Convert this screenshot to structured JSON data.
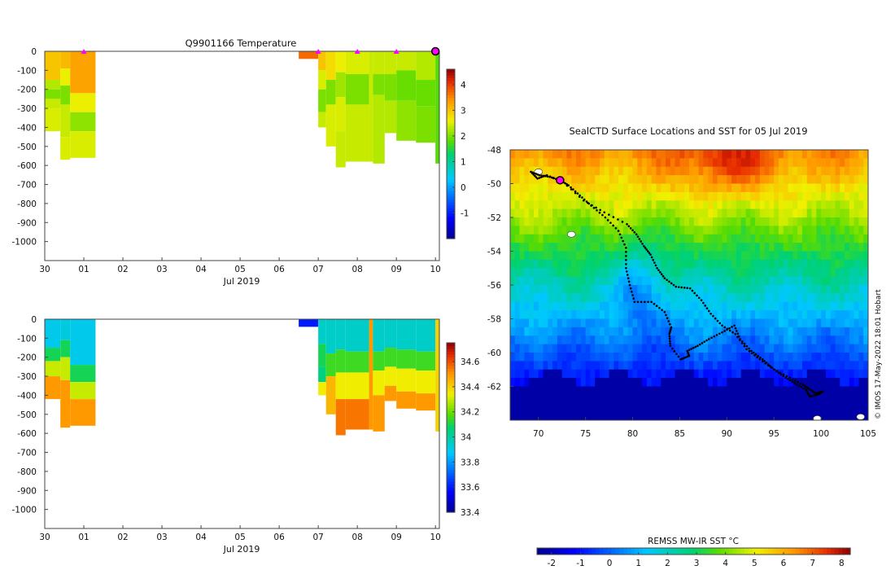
{
  "chart_data": [
    {
      "type": "heatmap",
      "title": "Q9901166  Temperature",
      "variable": "temperature",
      "xlabel": "Jul 2019",
      "x_tick_labels": [
        "30",
        "01",
        "02",
        "03",
        "04",
        "05",
        "06",
        "07",
        "08",
        "09",
        "10"
      ],
      "y_tick_labels": [
        "0",
        "-100",
        "-200",
        "-300",
        "-400",
        "-500",
        "-600",
        "-700",
        "-800",
        "-900",
        "-1000"
      ],
      "ylim": [
        -1100,
        0
      ],
      "xlim": [
        0,
        10.1
      ],
      "colorbar": {
        "min": -2,
        "max": 4.6,
        "ticks": [
          "-1",
          "0",
          "1",
          "2",
          "3",
          "4"
        ],
        "tick_values": [
          -1,
          0,
          1,
          2,
          3,
          4
        ]
      },
      "markers_x_days": [
        1,
        7,
        8,
        9
      ],
      "last_position_x_day": 10,
      "profiles": [
        {
          "x0": 0.0,
          "x1": 0.4,
          "maxdepth": 420,
          "bands": [
            [
              0,
              150,
              3.0
            ],
            [
              150,
              200,
              2.3
            ],
            [
              200,
              250,
              2.0
            ],
            [
              250,
              300,
              2.4
            ],
            [
              300,
              420,
              2.5
            ]
          ]
        },
        {
          "x0": 0.4,
          "x1": 0.65,
          "maxdepth": 570,
          "bands": [
            [
              0,
              90,
              3.1
            ],
            [
              90,
              180,
              2.6
            ],
            [
              180,
              280,
              2.0
            ],
            [
              280,
              450,
              2.4
            ],
            [
              450,
              570,
              2.5
            ]
          ]
        },
        {
          "x0": 0.65,
          "x1": 1.3,
          "maxdepth": 560,
          "bands": [
            [
              0,
              220,
              3.3
            ],
            [
              220,
              320,
              2.6
            ],
            [
              320,
              420,
              2.1
            ],
            [
              420,
              560,
              2.5
            ]
          ]
        },
        {
          "x0": 6.5,
          "x1": 7.0,
          "maxdepth": 40,
          "bands": [
            [
              0,
              40,
              3.7
            ]
          ]
        },
        {
          "x0": 7.0,
          "x1": 7.2,
          "maxdepth": 400,
          "bands": [
            [
              0,
              100,
              3.0
            ],
            [
              100,
              200,
              2.5
            ],
            [
              200,
              320,
              2.0
            ],
            [
              320,
              400,
              2.4
            ]
          ]
        },
        {
          "x0": 7.2,
          "x1": 7.45,
          "maxdepth": 500,
          "bands": [
            [
              0,
              150,
              2.8
            ],
            [
              150,
              280,
              2.0
            ],
            [
              280,
              500,
              2.5
            ]
          ]
        },
        {
          "x0": 7.45,
          "x1": 7.7,
          "maxdepth": 610,
          "bands": [
            [
              0,
              110,
              2.6
            ],
            [
              110,
              240,
              2.2
            ],
            [
              240,
              420,
              2.5
            ],
            [
              420,
              610,
              2.4
            ]
          ]
        },
        {
          "x0": 7.7,
          "x1": 8.3,
          "maxdepth": 580,
          "bands": [
            [
              0,
              120,
              2.5
            ],
            [
              120,
              280,
              2.0
            ],
            [
              280,
              580,
              2.4
            ]
          ]
        },
        {
          "x0": 8.3,
          "x1": 8.4,
          "maxdepth": 580,
          "bands": [
            [
              0,
              580,
              2.4
            ]
          ]
        },
        {
          "x0": 8.4,
          "x1": 8.7,
          "maxdepth": 590,
          "bands": [
            [
              0,
              120,
              2.4
            ],
            [
              120,
              230,
              2.0
            ],
            [
              230,
              590,
              2.3
            ]
          ]
        },
        {
          "x0": 8.7,
          "x1": 9.0,
          "maxdepth": 430,
          "bands": [
            [
              0,
              120,
              2.4
            ],
            [
              120,
              260,
              2.0
            ],
            [
              260,
              430,
              2.3
            ]
          ]
        },
        {
          "x0": 9.0,
          "x1": 9.5,
          "maxdepth": 470,
          "bands": [
            [
              0,
              100,
              2.4
            ],
            [
              100,
              260,
              1.9
            ],
            [
              260,
              470,
              2.1
            ]
          ]
        },
        {
          "x0": 9.5,
          "x1": 10.0,
          "maxdepth": 480,
          "bands": [
            [
              0,
              150,
              2.3
            ],
            [
              150,
              290,
              1.9
            ],
            [
              290,
              480,
              2.0
            ]
          ]
        },
        {
          "x0": 10.0,
          "x1": 10.1,
          "maxdepth": 590,
          "bands": [
            [
              0,
              590,
              1.8
            ]
          ]
        }
      ]
    },
    {
      "type": "heatmap",
      "title": "",
      "variable": "salinity",
      "xlabel": "Jul 2019",
      "x_tick_labels": [
        "30",
        "01",
        "02",
        "03",
        "04",
        "05",
        "06",
        "07",
        "08",
        "09",
        "10"
      ],
      "y_tick_labels": [
        "0",
        "-100",
        "-200",
        "-300",
        "-400",
        "-500",
        "-600",
        "-700",
        "-800",
        "-900",
        "-1000"
      ],
      "ylim": [
        -1100,
        0
      ],
      "xlim": [
        0,
        10.1
      ],
      "colorbar": {
        "min": 33.4,
        "max": 34.75,
        "ticks": [
          "33.4",
          "33.6",
          "33.8",
          "34",
          "34.2",
          "34.4",
          "34.6"
        ],
        "tick_values": [
          33.4,
          33.6,
          33.8,
          34.0,
          34.2,
          34.4,
          34.6
        ]
      },
      "profiles": [
        {
          "x0": 0.0,
          "x1": 0.4,
          "maxdepth": 420,
          "bands": [
            [
              0,
              150,
              33.9
            ],
            [
              150,
              220,
              34.1
            ],
            [
              220,
              300,
              34.3
            ],
            [
              300,
              420,
              34.5
            ]
          ]
        },
        {
          "x0": 0.4,
          "x1": 0.65,
          "maxdepth": 570,
          "bands": [
            [
              0,
              110,
              33.92
            ],
            [
              110,
              200,
              34.1
            ],
            [
              200,
              320,
              34.3
            ],
            [
              320,
              570,
              34.5
            ]
          ]
        },
        {
          "x0": 0.65,
          "x1": 1.3,
          "maxdepth": 560,
          "bands": [
            [
              0,
              240,
              33.9
            ],
            [
              240,
              330,
              34.1
            ],
            [
              330,
              420,
              34.3
            ],
            [
              420,
              560,
              34.5
            ]
          ]
        },
        {
          "x0": 6.5,
          "x1": 7.0,
          "maxdepth": 40,
          "bands": [
            [
              0,
              40,
              33.6
            ]
          ]
        },
        {
          "x0": 7.0,
          "x1": 7.2,
          "maxdepth": 400,
          "bands": [
            [
              0,
              130,
              33.95
            ],
            [
              130,
              250,
              34.1
            ],
            [
              250,
              330,
              34.05
            ],
            [
              330,
              400,
              34.35
            ]
          ]
        },
        {
          "x0": 7.2,
          "x1": 7.45,
          "maxdepth": 500,
          "bands": [
            [
              0,
              180,
              33.95
            ],
            [
              180,
              300,
              34.15
            ],
            [
              300,
              500,
              34.45
            ]
          ]
        },
        {
          "x0": 7.45,
          "x1": 7.7,
          "maxdepth": 610,
          "bands": [
            [
              0,
              160,
              33.95
            ],
            [
              160,
              280,
              34.15
            ],
            [
              280,
              420,
              34.35
            ],
            [
              420,
              610,
              34.55
            ]
          ]
        },
        {
          "x0": 7.7,
          "x1": 8.3,
          "maxdepth": 580,
          "bands": [
            [
              0,
              170,
              33.95
            ],
            [
              170,
              280,
              34.15
            ],
            [
              280,
              420,
              34.35
            ],
            [
              420,
              580,
              34.55
            ]
          ]
        },
        {
          "x0": 8.3,
          "x1": 8.4,
          "maxdepth": 580,
          "bands": [
            [
              0,
              580,
              34.5
            ]
          ]
        },
        {
          "x0": 8.4,
          "x1": 8.7,
          "maxdepth": 590,
          "bands": [
            [
              0,
              170,
              33.95
            ],
            [
              170,
              270,
              34.15
            ],
            [
              270,
              400,
              34.35
            ],
            [
              400,
              590,
              34.5
            ]
          ]
        },
        {
          "x0": 8.7,
          "x1": 9.0,
          "maxdepth": 430,
          "bands": [
            [
              0,
              150,
              33.95
            ],
            [
              150,
              250,
              34.15
            ],
            [
              250,
              350,
              34.35
            ],
            [
              350,
              430,
              34.5
            ]
          ]
        },
        {
          "x0": 9.0,
          "x1": 9.5,
          "maxdepth": 470,
          "bands": [
            [
              0,
              160,
              33.95
            ],
            [
              160,
              260,
              34.15
            ],
            [
              260,
              380,
              34.35
            ],
            [
              380,
              470,
              34.5
            ]
          ]
        },
        {
          "x0": 9.5,
          "x1": 10.0,
          "maxdepth": 480,
          "bands": [
            [
              0,
              170,
              33.95
            ],
            [
              170,
              270,
              34.15
            ],
            [
              270,
              390,
              34.35
            ],
            [
              390,
              480,
              34.5
            ]
          ]
        },
        {
          "x0": 10.0,
          "x1": 10.1,
          "maxdepth": 590,
          "bands": [
            [
              0,
              590,
              34.4
            ]
          ]
        }
      ]
    },
    {
      "type": "heatmap",
      "title": "SealCTD Surface Locations and SST for 05 Jul 2019",
      "variable": "sea surface temperature map",
      "xlim": [
        67,
        105
      ],
      "ylim": [
        -64,
        -48
      ],
      "x_tick_labels": [
        "70",
        "75",
        "80",
        "85",
        "90",
        "95",
        "100",
        "105"
      ],
      "x_tick_values": [
        70,
        75,
        80,
        85,
        90,
        95,
        100,
        105
      ],
      "y_tick_labels": [
        "-48",
        "-50",
        "-52",
        "-54",
        "-56",
        "-58",
        "-60",
        "-62"
      ],
      "y_tick_values": [
        -48,
        -50,
        -52,
        -54,
        -56,
        -58,
        -60,
        -62
      ],
      "colorbar_label": "REMSS MW-IR SST °C",
      "colorbar": {
        "min": -2.5,
        "max": 8.3,
        "ticks": [
          "-2",
          "-1",
          "0",
          "1",
          "2",
          "3",
          "4",
          "5",
          "6",
          "7",
          "8"
        ],
        "tick_values": [
          -2,
          -1,
          0,
          1,
          2,
          3,
          4,
          5,
          6,
          7,
          8
        ]
      },
      "side_note": "© IMOS 17-May-2022 18:01 Hobart",
      "track": [
        [
          98.6,
          -62.1
        ],
        [
          99.4,
          -62.4
        ],
        [
          100.2,
          -62.3
        ],
        [
          99.6,
          -62.5
        ],
        [
          98.8,
          -62.6
        ],
        [
          98.4,
          -62.2
        ],
        [
          97.2,
          -61.8
        ],
        [
          96.0,
          -61.4
        ],
        [
          94.8,
          -60.9
        ],
        [
          93.8,
          -60.4
        ],
        [
          92.6,
          -59.9
        ],
        [
          91.4,
          -59.2
        ],
        [
          90.8,
          -58.4
        ],
        [
          89.5,
          -58.8
        ],
        [
          88.1,
          -59.2
        ],
        [
          86.9,
          -59.6
        ],
        [
          85.8,
          -59.9
        ],
        [
          86.0,
          -60.2
        ],
        [
          85.1,
          -60.4
        ],
        [
          84.0,
          -59.6
        ],
        [
          83.9,
          -58.9
        ],
        [
          84.1,
          -58.5
        ],
        [
          83.4,
          -57.6
        ],
        [
          82.0,
          -57.0
        ],
        [
          80.2,
          -57.0
        ],
        [
          79.7,
          -56.0
        ],
        [
          79.3,
          -55.0
        ],
        [
          79.3,
          -53.8
        ],
        [
          78.5,
          -52.8
        ],
        [
          77.1,
          -52.0
        ],
        [
          75.6,
          -51.3
        ],
        [
          74.4,
          -50.7
        ],
        [
          73.2,
          -50.1
        ],
        [
          72.3,
          -49.8
        ],
        [
          71.2,
          -49.6
        ],
        [
          70.1,
          -49.5
        ],
        [
          69.2,
          -49.3
        ],
        [
          69.9,
          -49.7
        ],
        [
          70.9,
          -49.5
        ],
        [
          72.6,
          -49.9
        ],
        [
          74.8,
          -51.0
        ],
        [
          77.0,
          -51.7
        ],
        [
          79.4,
          -52.4
        ],
        [
          80.4,
          -53.0
        ],
        [
          81.2,
          -53.7
        ],
        [
          81.9,
          -54.2
        ],
        [
          82.6,
          -55.0
        ],
        [
          83.4,
          -55.6
        ],
        [
          84.6,
          -56.1
        ],
        [
          86.1,
          -56.2
        ],
        [
          87.3,
          -56.9
        ],
        [
          88.3,
          -57.7
        ],
        [
          89.5,
          -58.4
        ],
        [
          90.9,
          -58.9
        ],
        [
          92.1,
          -59.8
        ],
        [
          93.5,
          -60.4
        ],
        [
          95.0,
          -61.0
        ],
        [
          96.7,
          -61.5
        ],
        [
          98.1,
          -61.9
        ],
        [
          98.6,
          -62.1
        ]
      ],
      "highlight_point": [
        72.3,
        -49.8
      ],
      "island_points": [
        [
          70.0,
          -49.3
        ],
        [
          73.5,
          -53.0
        ],
        [
          99.6,
          -63.9
        ],
        [
          104.2,
          -63.8
        ]
      ]
    }
  ]
}
